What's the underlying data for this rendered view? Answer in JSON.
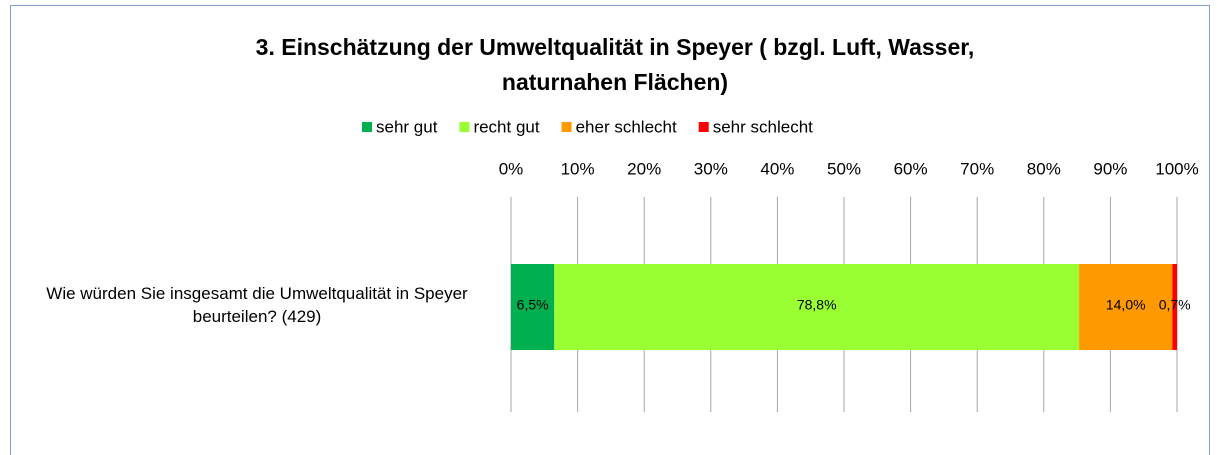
{
  "chart_data": {
    "type": "bar",
    "orientation": "horizontal",
    "stacked": true,
    "title": "3.  Einschätzung der Umweltqualität in Speyer ( bzgl. Luft, Wasser, naturnahen Flächen)",
    "categories": [
      "Wie würden Sie insgesamt die Umweltqualität in Speyer beurteilen? (429)"
    ],
    "series": [
      {
        "name": "sehr gut",
        "color": "#00b050",
        "values": [
          6.5
        ],
        "value_labels": [
          "6,5%"
        ]
      },
      {
        "name": "recht gut",
        "color": "#99ff33",
        "values": [
          78.8
        ],
        "value_labels": [
          "78,8%"
        ]
      },
      {
        "name": "eher schlecht",
        "color": "#ff9900",
        "values": [
          14.0
        ],
        "value_labels": [
          "14,0%"
        ]
      },
      {
        "name": "sehr schlecht",
        "color": "#ff0000",
        "values": [
          0.7
        ],
        "value_labels": [
          "0,7%"
        ]
      }
    ],
    "xlim": [
      0,
      100
    ],
    "xticks": [
      {
        "value": 0,
        "label": "0%"
      },
      {
        "value": 10,
        "label": "10%"
      },
      {
        "value": 20,
        "label": "20%"
      },
      {
        "value": 30,
        "label": "30%"
      },
      {
        "value": 40,
        "label": "40%"
      },
      {
        "value": 50,
        "label": "50%"
      },
      {
        "value": 60,
        "label": "60%"
      },
      {
        "value": 70,
        "label": "70%"
      },
      {
        "value": 80,
        "label": "80%"
      },
      {
        "value": 90,
        "label": "90%"
      },
      {
        "value": 100,
        "label": "100%"
      }
    ],
    "grid": true,
    "legend": "top"
  }
}
